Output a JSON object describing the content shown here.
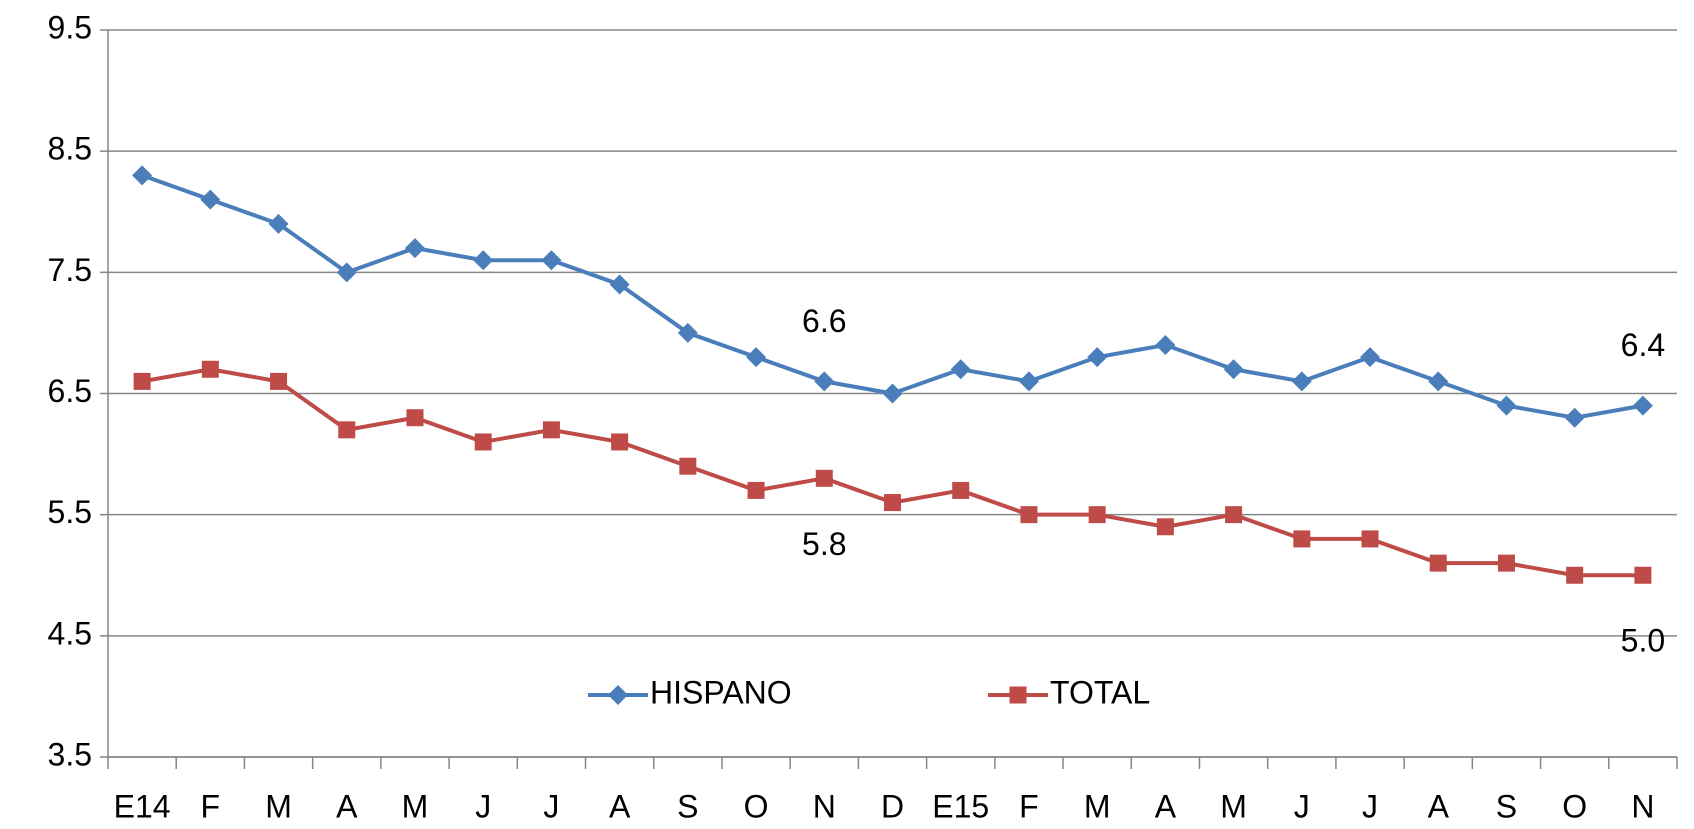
{
  "chart_data": {
    "type": "line",
    "categories": [
      "E14",
      "F",
      "M",
      "A",
      "M",
      "J",
      "J",
      "A",
      "S",
      "O",
      "N",
      "D",
      "E15",
      "F",
      "M",
      "A",
      "M",
      "J",
      "J",
      "A",
      "S",
      "O",
      "N"
    ],
    "series": [
      {
        "name": "HISPANO",
        "color": "#4a7ebb",
        "marker": "diamond",
        "values": [
          8.3,
          8.1,
          7.9,
          7.5,
          7.7,
          7.6,
          7.6,
          7.4,
          7.0,
          6.8,
          6.6,
          6.5,
          6.7,
          6.6,
          6.8,
          6.9,
          6.7,
          6.6,
          6.8,
          6.6,
          6.4,
          6.3,
          6.4
        ],
        "value_labels": [
          null,
          null,
          null,
          null,
          null,
          null,
          null,
          null,
          null,
          null,
          "6.6",
          null,
          null,
          null,
          null,
          null,
          null,
          null,
          null,
          null,
          null,
          null,
          "6.4"
        ]
      },
      {
        "name": "TOTAL",
        "color": "#be4b48",
        "marker": "square",
        "values": [
          6.6,
          6.7,
          6.6,
          6.2,
          6.3,
          6.1,
          6.2,
          6.1,
          5.9,
          5.7,
          5.8,
          5.6,
          5.7,
          5.5,
          5.5,
          5.4,
          5.5,
          5.3,
          5.3,
          5.1,
          5.1,
          5.0,
          5.0
        ],
        "value_labels": [
          null,
          null,
          null,
          null,
          null,
          null,
          null,
          null,
          null,
          null,
          "5.8",
          null,
          null,
          null,
          null,
          null,
          null,
          null,
          null,
          null,
          null,
          null,
          "5.0"
        ]
      }
    ],
    "ylim": [
      3.5,
      9.5
    ],
    "yticks": [
      3.5,
      4.5,
      5.5,
      6.5,
      7.5,
      8.5,
      9.5
    ],
    "grid": true,
    "legend": "bottom"
  }
}
